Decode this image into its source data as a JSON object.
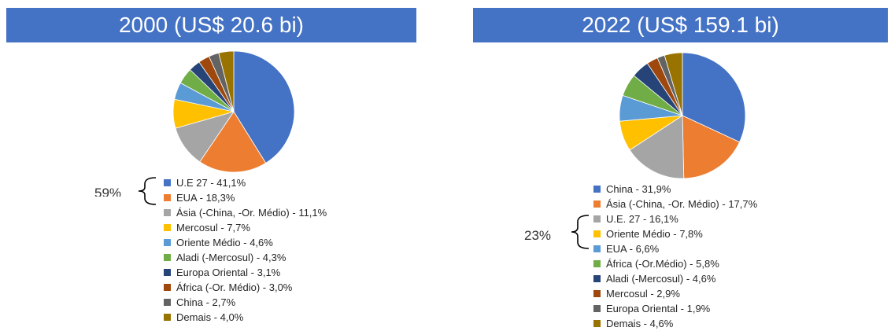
{
  "chart_data": [
    {
      "type": "pie",
      "title": "2000 (US$ 20.6 bi)",
      "categories": [
        "U.E 27",
        "EUA",
        "Ásia (-China, -Or. Médio)",
        "Mercosul",
        "Oriente Médio",
        "Aladi (-Mercosul)",
        "Europa Oriental",
        "África (-Or. Médio)",
        "China",
        "Demais"
      ],
      "values": [
        41.1,
        18.3,
        11.1,
        7.7,
        4.6,
        4.3,
        3.1,
        3.0,
        2.7,
        4.0
      ],
      "legend_labels": [
        "U.E 27 - 41,1%",
        "EUA - 18,3%",
        "Ásia (-China, -Or. Médio) - 11,1%",
        "Mercosul - 7,7%",
        "Oriente Médio - 4,6%",
        "Aladi (-Mercosul) - 4,3%",
        "Europa Oriental - 3,1%",
        "África (-Or. Médio) - 3,0%",
        "China - 2,7%",
        "Demais - 4,0%"
      ],
      "colors": [
        "#4472c4",
        "#ed7d31",
        "#a5a5a5",
        "#ffc000",
        "#5b9bd5",
        "#70ad47",
        "#264478",
        "#9e480e",
        "#636363",
        "#997300"
      ],
      "annotation": "59%",
      "legend_position": "bottom"
    },
    {
      "type": "pie",
      "title": "2022 (US$ 159.1 bi)",
      "categories": [
        "China",
        "Ásia (-China, -Or. Médio)",
        "U.E. 27",
        "Oriente Médio",
        "EUA",
        "África (-Or.Médio)",
        "Aladi (-Mercosul)",
        "Mercosul",
        "Europa Oriental",
        "Demais"
      ],
      "values": [
        31.9,
        17.7,
        16.1,
        7.8,
        6.6,
        5.8,
        4.6,
        2.9,
        1.9,
        4.6
      ],
      "legend_labels": [
        "China - 31,9%",
        "Ásia (-China, -Or. Médio) - 17,7%",
        "U.E. 27 - 16,1%",
        "Oriente Médio - 7,8%",
        "EUA - 6,6%",
        "África (-Or.Médio) - 5,8%",
        "Aladi (-Mercosul) - 4,6%",
        "Mercosul - 2,9%",
        "Europa Oriental - 1,9%",
        "Demais - 4,6%"
      ],
      "colors": [
        "#4472c4",
        "#ed7d31",
        "#a5a5a5",
        "#ffc000",
        "#5b9bd5",
        "#70ad47",
        "#264478",
        "#9e480e",
        "#636363",
        "#997300"
      ],
      "annotation": "23%",
      "legend_position": "bottom"
    }
  ]
}
